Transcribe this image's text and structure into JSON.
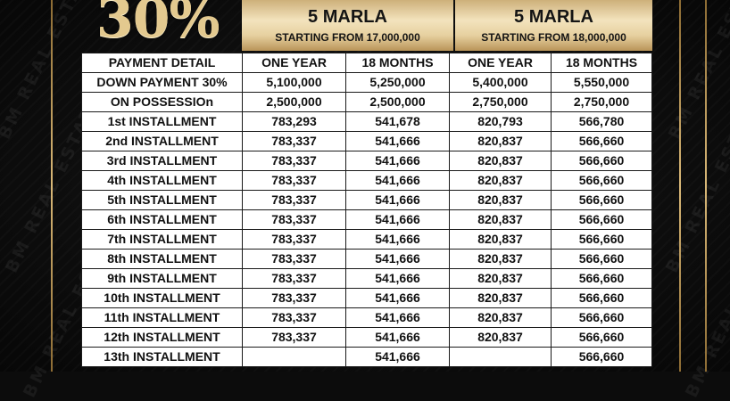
{
  "badge": {
    "percent": "30%"
  },
  "plans": [
    {
      "title": "5 MARLA",
      "subtitle": "STARTING FROM 17,000,000"
    },
    {
      "title": "5 MARLA",
      "subtitle": "STARTING FROM 18,000,000"
    }
  ],
  "watermark": {
    "text": "BM REAL ESTATE"
  },
  "table": {
    "headers": [
      "PAYMENT DETAIL",
      "ONE YEAR",
      "18 MONTHS",
      "ONE YEAR",
      "18 MONTHS"
    ],
    "rows": [
      [
        "DOWN PAYMENT 30%",
        "5,100,000",
        "5,250,000",
        "5,400,000",
        "5,550,000"
      ],
      [
        "ON POSSESSIOn",
        "2,500,000",
        "2,500,000",
        "2,750,000",
        "2,750,000"
      ],
      [
        "1st INSTALLMENT",
        "783,293",
        "541,678",
        "820,793",
        "566,780"
      ],
      [
        "2nd INSTALLMENT",
        "783,337",
        "541,666",
        "820,837",
        "566,660"
      ],
      [
        "3rd INSTALLMENT",
        "783,337",
        "541,666",
        "820,837",
        "566,660"
      ],
      [
        "4th INSTALLMENT",
        "783,337",
        "541,666",
        "820,837",
        "566,660"
      ],
      [
        "5th INSTALLMENT",
        "783,337",
        "541,666",
        "820,837",
        "566,660"
      ],
      [
        "6th INSTALLMENT",
        "783,337",
        "541,666",
        "820,837",
        "566,660"
      ],
      [
        "7th INSTALLMENT",
        "783,337",
        "541,666",
        "820,837",
        "566,660"
      ],
      [
        "8th INSTALLMENT",
        "783,337",
        "541,666",
        "820,837",
        "566,660"
      ],
      [
        "9th INSTALLMENT",
        "783,337",
        "541,666",
        "820,837",
        "566,660"
      ],
      [
        "10th INSTALLMENT",
        "783,337",
        "541,666",
        "820,837",
        "566,660"
      ],
      [
        "11th INSTALLMENT",
        "783,337",
        "541,666",
        "820,837",
        "566,660"
      ],
      [
        "12th INSTALLMENT",
        "783,337",
        "541,666",
        "820,837",
        "566,660"
      ],
      [
        "13th INSTALLMENT",
        "",
        "541,666",
        "",
        "566,660"
      ]
    ]
  },
  "colors": {
    "gold_light": "#f3e3bd",
    "gold_dark": "#b99459",
    "background": "#0c0c0c",
    "table_bg": "#ffffff",
    "text": "#111111"
  }
}
